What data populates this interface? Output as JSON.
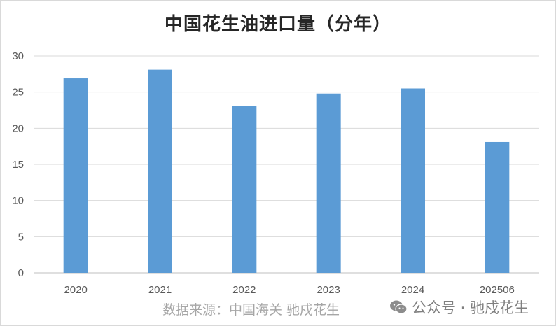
{
  "chart_data": {
    "type": "bar",
    "title": "中国花生油进口量（分年）",
    "categories": [
      "2020",
      "2021",
      "2022",
      "2023",
      "2024",
      "202506"
    ],
    "values": [
      26.9,
      28.1,
      23.1,
      24.8,
      25.5,
      18.1
    ],
    "ylim": [
      0,
      30
    ],
    "yticks": [
      0,
      5,
      10,
      15,
      20,
      25,
      30
    ],
    "grid": true,
    "bar_color": "#5b9bd5"
  },
  "footer": {
    "source": "数据来源：中国海关  驰戍花生",
    "watermark": "公众号 · 驰戍花生",
    "watermark_icon": "wechat-icon"
  }
}
